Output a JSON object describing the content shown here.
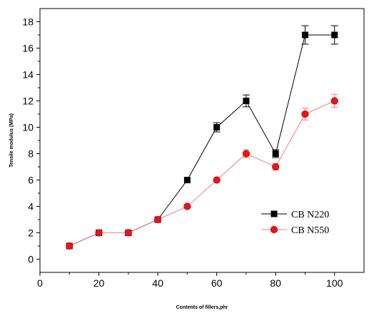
{
  "chart_data": {
    "type": "line",
    "title": "",
    "xlabel": "Contents of fillers,phr",
    "ylabel": "Tensile modulus (MPa)",
    "xlim": [
      0,
      110
    ],
    "ylim": [
      -1,
      19
    ],
    "xticks": [
      0,
      20,
      40,
      60,
      80,
      100
    ],
    "yticks": [
      0,
      2,
      4,
      6,
      8,
      10,
      12,
      14,
      16,
      18
    ],
    "grid": false,
    "legend_position": "lower-right",
    "series": [
      {
        "name": "CB N220",
        "marker": "square",
        "color": "#000000",
        "line_color": "#000000",
        "x": [
          10,
          20,
          30,
          40,
          50,
          60,
          70,
          80,
          90,
          100
        ],
        "y": [
          1,
          2,
          2,
          3,
          6,
          10,
          12,
          8,
          17,
          17
        ],
        "error": [
          0,
          0,
          0,
          0,
          0,
          0.35,
          0.45,
          0.3,
          0.7,
          0.7
        ]
      },
      {
        "name": "CB N550",
        "marker": "circle",
        "color": "#e8141c",
        "line_color": "#f08080",
        "x": [
          10,
          20,
          30,
          40,
          50,
          60,
          70,
          80,
          90,
          100
        ],
        "y": [
          1,
          2,
          2,
          3,
          4,
          6,
          8,
          7,
          11,
          12
        ],
        "error": [
          0,
          0,
          0,
          0,
          0,
          0,
          0.3,
          0.25,
          0.45,
          0.5
        ]
      }
    ]
  }
}
